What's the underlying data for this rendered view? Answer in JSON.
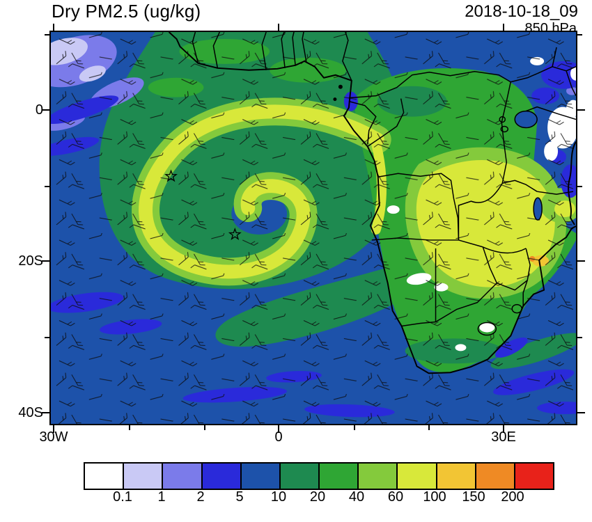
{
  "header": {
    "title": "Dry PM2.5 (ug/kg)",
    "datetime": "2018-10-18_09",
    "level": "850 hPa"
  },
  "map": {
    "y_ticks": [
      "0",
      "20S",
      "40S"
    ],
    "x_ticks": [
      "30W",
      "0",
      "30E"
    ],
    "markers": [
      "star-marker-west",
      "star-marker-central"
    ]
  },
  "chart_data": {
    "type": "heatmap",
    "title": "Dry PM2.5 (ug/kg)",
    "variable": "Dry PM2.5",
    "units": "ug/kg",
    "datetime": "2018-10-18_09",
    "pressure_level": "850 hPa",
    "region": "Southern Africa and South Atlantic",
    "x_tick_labels": [
      "30W",
      "0",
      "30E"
    ],
    "y_tick_labels": [
      "0",
      "20S",
      "40S"
    ],
    "colorbar": {
      "boundary_labels": [
        "0.1",
        "1",
        "2",
        "5",
        "10",
        "20",
        "40",
        "60",
        "100",
        "150",
        "200"
      ],
      "colors": [
        "#ffffff",
        "#c9c9f5",
        "#7b7bea",
        "#2a2ada",
        "#1d52aa",
        "#1e8a50",
        "#2fa634",
        "#84ca3c",
        "#d8e83a",
        "#f2c534",
        "#ef8a24",
        "#e8221a"
      ]
    },
    "overlays": [
      "wind barbs",
      "coastlines",
      "country borders",
      "two star markers"
    ],
    "notable_features": [
      "Yellow-green smoke plume spiral (about 40-100 ug/kg) curling over the South Atlantic near 15S, 5W",
      "High PM2.5 (about 60-150 ug/kg) band over Angola, Zambia and Zimbabwe",
      "Low values (about 1-5 ug/kg, blue/purple) over East Africa, the far southwest ocean and the top-left ocean corner",
      "Very low patches (below 0.1, white) over East African highlands, Lesotho and parts of Namibia/Botswana"
    ]
  }
}
